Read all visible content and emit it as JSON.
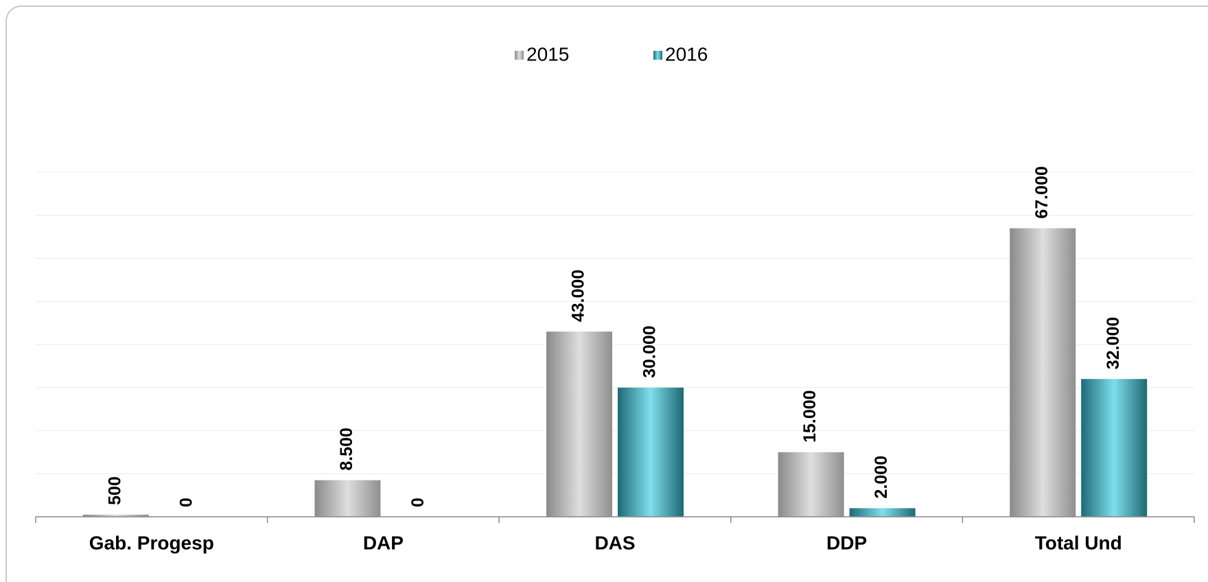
{
  "chart_data": {
    "type": "bar",
    "categories": [
      "Gab. Progesp",
      "DAP",
      "DAS",
      "DDP",
      "Total Und"
    ],
    "series": [
      {
        "name": "2015",
        "color": "#a6a6a6",
        "values": [
          500,
          8500,
          43000,
          15000,
          67000
        ],
        "value_labels": [
          "500",
          "8.500",
          "43.000",
          "15.000",
          "67.000"
        ]
      },
      {
        "name": "2016",
        "color": "#4bc6d8",
        "values": [
          0,
          0,
          30000,
          2000,
          32000
        ],
        "value_labels": [
          "0",
          "0",
          "30.000",
          "2.000",
          "32.000"
        ]
      }
    ],
    "ylim": [
      0,
      80000
    ],
    "yticks": [
      10000,
      20000,
      30000,
      40000,
      50000,
      60000,
      70000,
      80000
    ],
    "grid": true,
    "legend": "top"
  }
}
